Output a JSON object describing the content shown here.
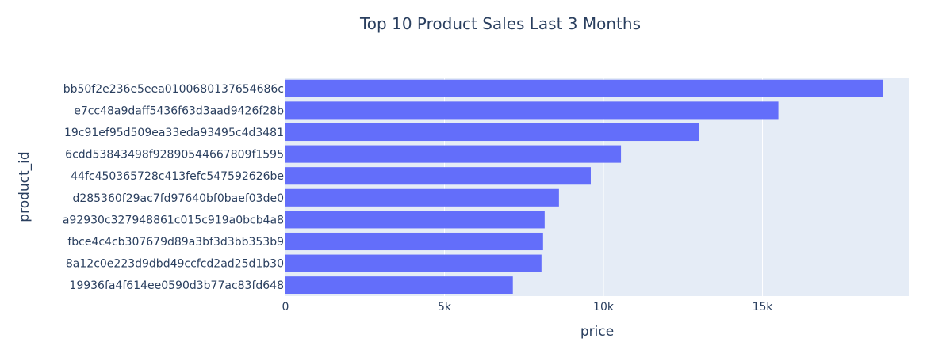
{
  "chart_data": {
    "type": "bar",
    "orientation": "horizontal",
    "title": "Top 10 Product Sales Last 3 Months",
    "xlabel": "price",
    "ylabel": "product_id",
    "xlim": [
      0,
      19600
    ],
    "xticks": [
      0,
      5000,
      10000,
      15000
    ],
    "xtick_labels": [
      "0",
      "5k",
      "10k",
      "15k"
    ],
    "grid": true,
    "bar_color": "#636efa",
    "plot_bg_color": "#e5ecf6",
    "text_color": "#2a3f5f",
    "categories": [
      "bb50f2e236e5eea0100680137654686c",
      "e7cc48a9daff5436f63d3aad9426f28b",
      "19c91ef95d509ea33eda93495c4d3481",
      "6cdd53843498f92890544667809f1595",
      "44fc450365728c413fefc547592626be",
      "d285360f29ac7fd97640bf0baef03de0",
      "a92930c327948861c015c919a0bcb4a8",
      "fbce4c4cb307679d89a3bf3d3bb353b9",
      "8a12c0e223d9dbd49ccfcd2ad25d1b30",
      "19936fa4f614ee0590d3b77ac83fd648"
    ],
    "values": [
      18800,
      15500,
      13000,
      10550,
      9600,
      8600,
      8150,
      8100,
      8050,
      7150
    ]
  }
}
